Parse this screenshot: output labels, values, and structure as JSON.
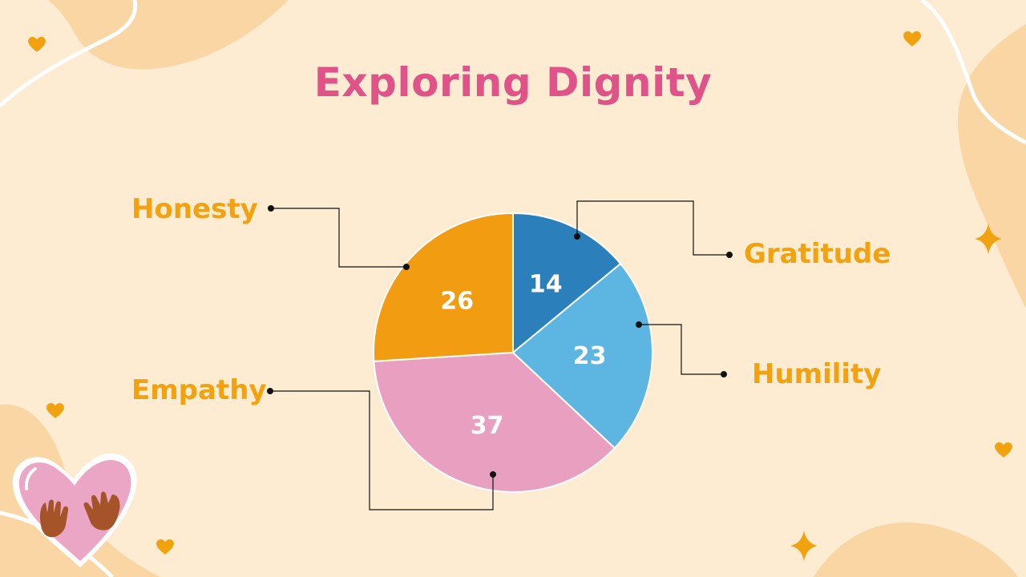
{
  "colors": {
    "background": "#fdebd2",
    "blob": "#f9d6a4",
    "title": "#df5389",
    "label": "#f2a20e",
    "heart": "#f2a20e"
  },
  "chart_data": {
    "type": "pie",
    "title": "Exploring Dignity",
    "slices": [
      {
        "name": "Gratitude",
        "value": 14,
        "color": "#2b80bc"
      },
      {
        "name": "Humility",
        "value": 23,
        "color": "#5db5e2"
      },
      {
        "name": "Empathy",
        "value": 37,
        "color": "#e9a0c0"
      },
      {
        "name": "Honesty",
        "value": 26,
        "color": "#f29c12"
      }
    ],
    "data_labels": [
      "14",
      "23",
      "37",
      "26"
    ],
    "legend_placement": "callouts"
  },
  "decorations": {
    "icons": [
      "heart-icon",
      "sparkle-icon",
      "heart-hands-illustration"
    ]
  }
}
